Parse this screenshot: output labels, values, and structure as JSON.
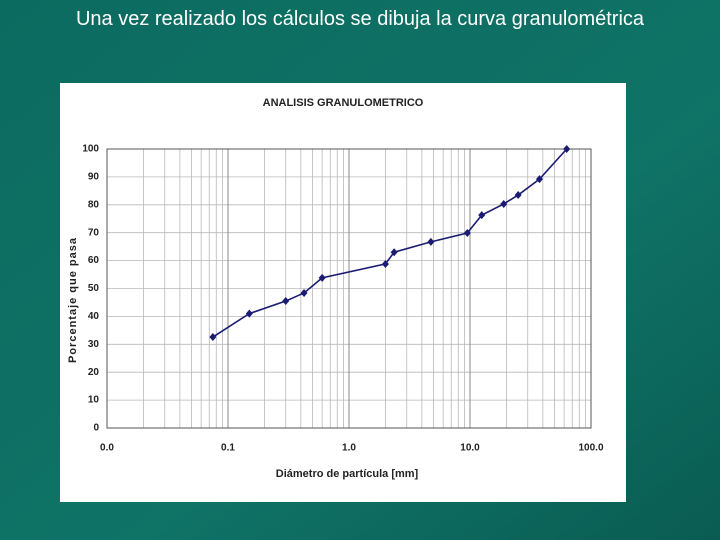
{
  "slide_title": "Una vez realizado los cálculos se dibuja la curva granulométrica",
  "chart_data": {
    "type": "line",
    "title": "ANALISIS GRANULOMETRICO",
    "x_label": "Diámetro de partícula [mm]",
    "y_label": "Porcentaje que pasa",
    "x_scale": "log",
    "grid": true,
    "color": "#1b1b72",
    "x": [
      0.075,
      0.15,
      0.3,
      0.425,
      0.6,
      2,
      2.36,
      4.75,
      9.5,
      12.5,
      19,
      25,
      37.5,
      63
    ],
    "series": [
      {
        "name": "Curva granulométrica",
        "color": "#1b1b72",
        "values": [
          32.6,
          41,
          45.5,
          48.4,
          53.8,
          58.8,
          63,
          66.7,
          69.9,
          76.3,
          80.3,
          83.5,
          89.2,
          100
        ]
      }
    ],
    "xlim": [
      0.01,
      100
    ],
    "xticks": [
      {
        "value": 0.01,
        "label": "0.0"
      },
      {
        "value": 0.1,
        "label": "0.1"
      },
      {
        "value": 1,
        "label": "1.0"
      },
      {
        "value": 10,
        "label": "10.0"
      },
      {
        "value": 100,
        "label": "100.0"
      }
    ],
    "ylim": [
      0,
      100
    ],
    "yticks": [
      0,
      10,
      20,
      30,
      40,
      50,
      60,
      70,
      80,
      90,
      100
    ]
  }
}
